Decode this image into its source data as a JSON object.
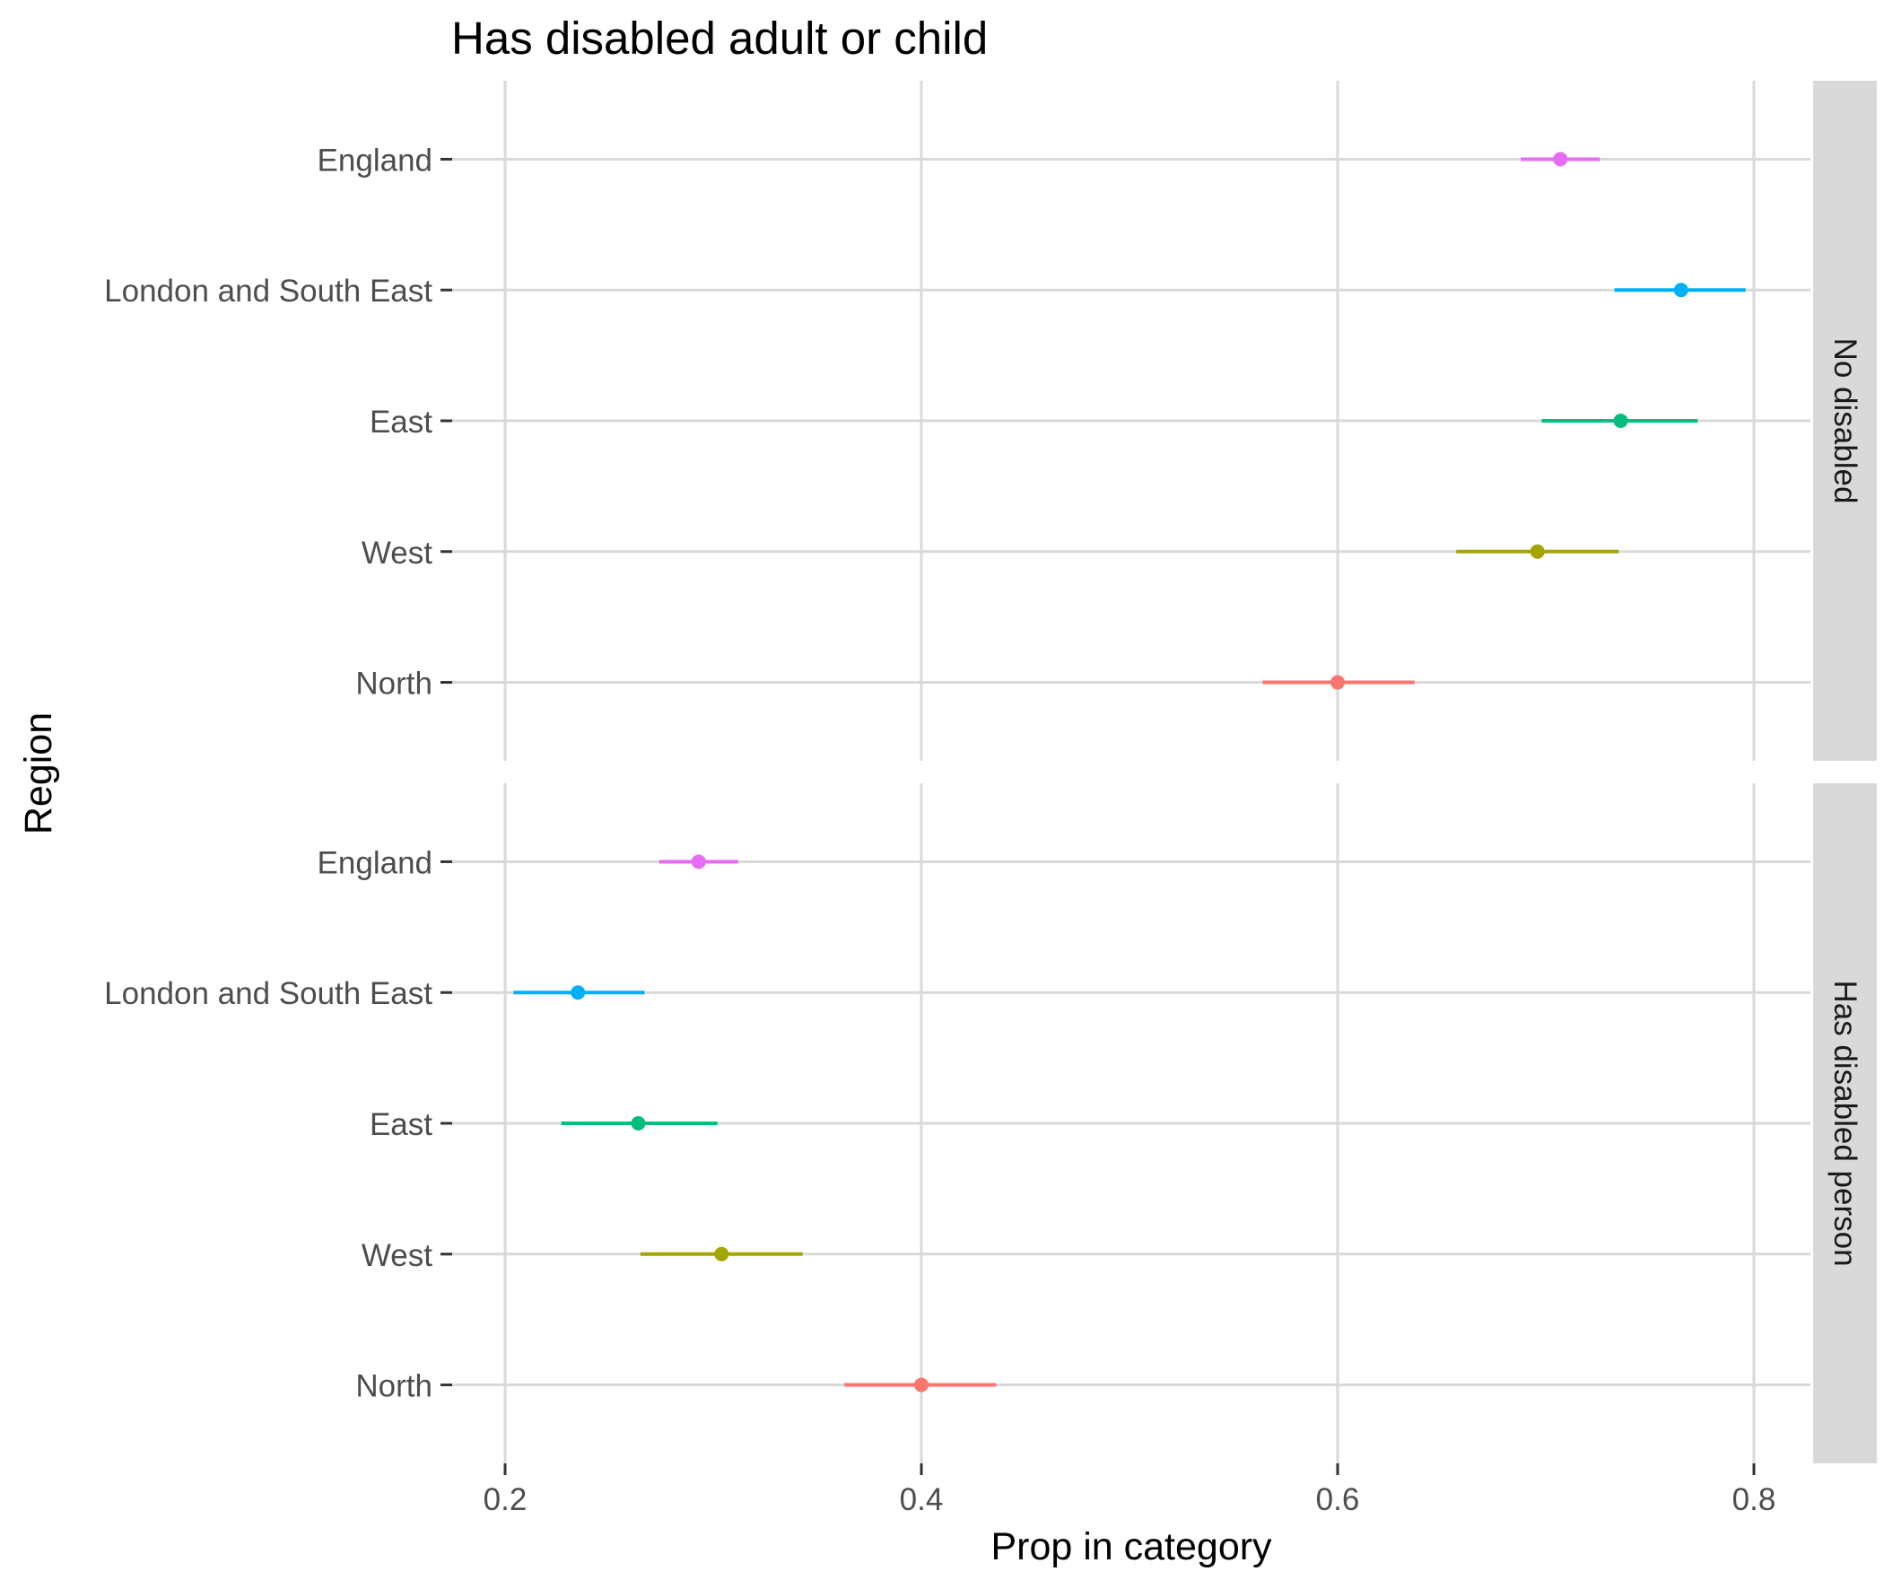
{
  "chart_data": {
    "type": "scatter",
    "title": "Has disabled adult or child",
    "xlabel": "Prop in category",
    "ylabel": "Region",
    "xlim": [
      0.18,
      0.82
    ],
    "x_ticks": [
      0.2,
      0.4,
      0.6,
      0.8
    ],
    "x_tick_labels": [
      "0.2",
      "0.4",
      "0.6",
      "0.8"
    ],
    "grid": true,
    "legend": "none",
    "categories": [
      "North",
      "West",
      "East",
      "London and South East",
      "England"
    ],
    "colors": {
      "England": "#E76BF3",
      "London and South East": "#00B0F6",
      "East": "#00BF7D",
      "West": "#A3A500",
      "North": "#F8766D"
    },
    "panels": [
      {
        "strip_label": "No disabled",
        "points": [
          {
            "region": "England",
            "x": 0.707,
            "lo": 0.688,
            "hi": 0.726
          },
          {
            "region": "London and South East",
            "x": 0.765,
            "lo": 0.733,
            "hi": 0.796
          },
          {
            "region": "East",
            "x": 0.736,
            "lo": 0.698,
            "hi": 0.773
          },
          {
            "region": "West",
            "x": 0.696,
            "lo": 0.657,
            "hi": 0.735
          },
          {
            "region": "North",
            "x": 0.6,
            "lo": 0.564,
            "hi": 0.637
          }
        ]
      },
      {
        "strip_label": "Has disabled person",
        "points": [
          {
            "region": "England",
            "x": 0.293,
            "lo": 0.274,
            "hi": 0.312
          },
          {
            "region": "London and South East",
            "x": 0.235,
            "lo": 0.204,
            "hi": 0.267
          },
          {
            "region": "East",
            "x": 0.264,
            "lo": 0.227,
            "hi": 0.302
          },
          {
            "region": "West",
            "x": 0.304,
            "lo": 0.265,
            "hi": 0.343
          },
          {
            "region": "North",
            "x": 0.4,
            "lo": 0.363,
            "hi": 0.436
          }
        ]
      }
    ]
  }
}
